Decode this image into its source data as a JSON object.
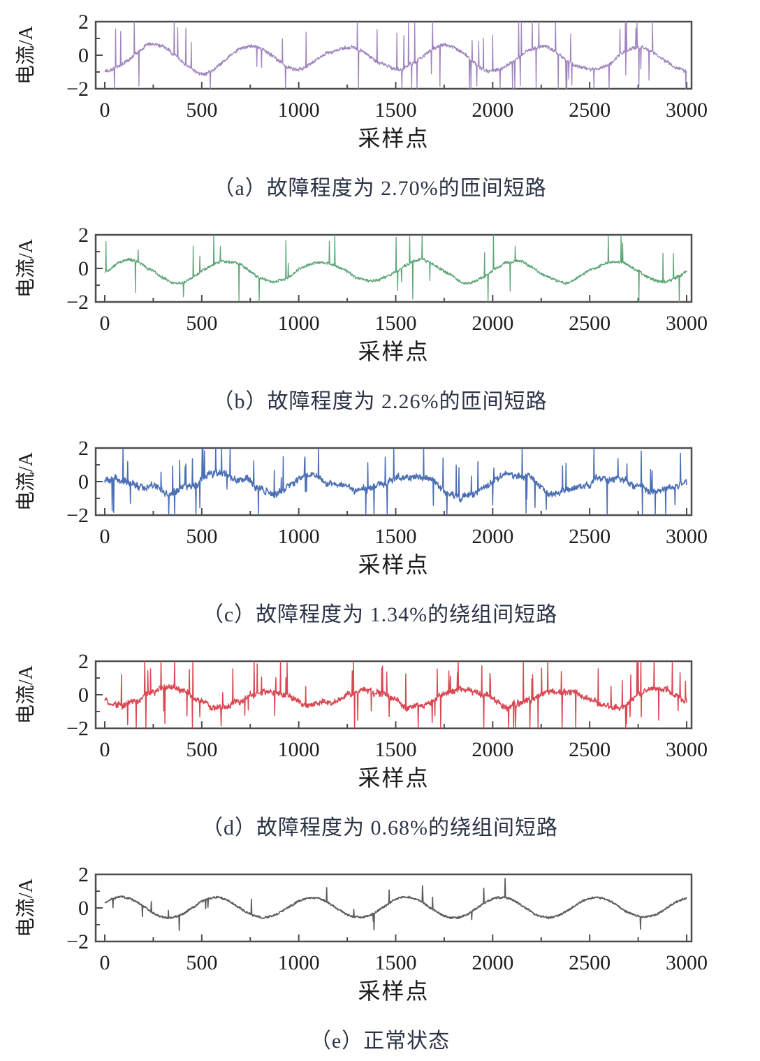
{
  "page": {
    "background": "#ffffff",
    "figure_kind": "five stacked current waveform plots"
  },
  "chart_data": [
    {
      "id": "a",
      "type": "line",
      "caption": "（a）故障程度为 2.70%的匝间短路",
      "xlabel": "采样点",
      "ylabel": "电流/A",
      "xlim": [
        0,
        3000
      ],
      "ylim": [
        -2,
        2
      ],
      "xticks": [
        0,
        500,
        1000,
        1500,
        2000,
        2500,
        3000
      ],
      "xtick_labels": [
        "0",
        "500",
        "1000",
        "1500",
        "2000",
        "2500",
        "3000"
      ],
      "yticks": [
        2,
        0,
        -2
      ],
      "ytick_labels": [
        "2",
        "0",
        "−2"
      ],
      "minor_xticks": [
        250,
        750,
        1250,
        1750,
        2250,
        2750
      ],
      "minor_yticks": [
        1,
        -1
      ],
      "axis_color": "#4d4d4d",
      "grid": false,
      "legend": "none",
      "pattern": "sine wave ~0.7 A amplitude, period ~500 samples, heavy impulsive spikes clipped at ±2",
      "line_color": "#9879b9",
      "line_width": 1.3,
      "waveform": {
        "n_points": 3000,
        "amplitude": 0.72,
        "am": 0.15,
        "period": 500,
        "phase_deg": -90,
        "offset": -0.18,
        "noise": 0.1,
        "walk": 0.05,
        "spike_prob": 0.045,
        "spike_min": 1.0,
        "spike_max": 2.6,
        "spike_down_bias": 0.55,
        "seed": 17
      }
    },
    {
      "id": "b",
      "type": "line",
      "caption": "（b）故障程度为 2.26%的匝间短路",
      "xlabel": "采样点",
      "ylabel": "电流/A",
      "xlim": [
        0,
        3000
      ],
      "ylim": [
        -2,
        2
      ],
      "xticks": [
        0,
        500,
        1000,
        1500,
        2000,
        2500,
        3000
      ],
      "xtick_labels": [
        "0",
        "500",
        "1000",
        "1500",
        "2000",
        "2500",
        "3000"
      ],
      "yticks": [
        2,
        0,
        -2
      ],
      "ytick_labels": [
        "2",
        "0",
        "−2"
      ],
      "minor_xticks": [
        250,
        750,
        1250,
        1750,
        2250,
        2750
      ],
      "minor_yticks": [
        1,
        -1
      ],
      "axis_color": "#4d4d4d",
      "grid": false,
      "legend": "none",
      "pattern": "sine wave ~0.6 A amplitude, period ~500 samples, moderate impulsive spikes to ±2",
      "line_color": "#4f9e6a",
      "line_width": 1.3,
      "waveform": {
        "n_points": 3000,
        "amplitude": 0.62,
        "am": 0.08,
        "period": 500,
        "phase_deg": 0,
        "offset": -0.2,
        "noise": 0.08,
        "walk": 0.04,
        "spike_prob": 0.02,
        "spike_min": 0.8,
        "spike_max": 2.4,
        "spike_down_bias": 0.5,
        "seed": 29
      }
    },
    {
      "id": "c",
      "type": "line",
      "caption": "（c）故障程度为 1.34%的绕组间短路",
      "xlabel": "采样点",
      "ylabel": "电流/A",
      "xlim": [
        0,
        3000
      ],
      "ylim": [
        -2,
        2
      ],
      "xticks": [
        0,
        500,
        1000,
        1500,
        2000,
        2500,
        3000
      ],
      "xtick_labels": [
        "0",
        "500",
        "1000",
        "1500",
        "2000",
        "2500",
        "3000"
      ],
      "yticks": [
        2,
        0,
        -2
      ],
      "ytick_labels": [
        "2",
        "0",
        "−2"
      ],
      "minor_xticks": [
        250,
        750,
        1250,
        1750,
        2250,
        2750
      ],
      "minor_yticks": [
        1,
        -1
      ],
      "axis_color": "#4d4d4d",
      "grid": false,
      "legend": "none",
      "pattern": "weak sine buried in strong jagged noise, frequent spikes clipped at ±2",
      "line_color": "#3c63ae",
      "line_width": 1.5,
      "waveform": {
        "n_points": 3000,
        "amplitude": 0.42,
        "am": 0.1,
        "period": 500,
        "phase_deg": 30,
        "offset": -0.15,
        "noise": 0.16,
        "walk": 0.14,
        "spike_prob": 0.05,
        "spike_min": 0.9,
        "spike_max": 2.5,
        "spike_down_bias": 0.5,
        "seed": 53
      }
    },
    {
      "id": "d",
      "type": "line",
      "caption": "（d）故障程度为 0.68%的绕组间短路",
      "xlabel": "采样点",
      "ylabel": "电流/A",
      "xlim": [
        0,
        3000
      ],
      "ylim": [
        -2,
        2
      ],
      "xticks": [
        0,
        500,
        1000,
        1500,
        2000,
        2500,
        3000
      ],
      "xtick_labels": [
        "0",
        "500",
        "1000",
        "1500",
        "2000",
        "2500",
        "3000"
      ],
      "yticks": [
        2,
        0,
        -2
      ],
      "ytick_labels": [
        "2",
        "0",
        "−2"
      ],
      "minor_xticks": [
        250,
        750,
        1250,
        1750,
        2250,
        2750
      ],
      "minor_yticks": [
        1,
        -1
      ],
      "axis_color": "#4d4d4d",
      "grid": false,
      "legend": "none",
      "pattern": "weak sine with strong jagged noise and many tall spikes clipped at ±2",
      "line_color": "#d63a45",
      "line_width": 1.5,
      "waveform": {
        "n_points": 3000,
        "amplitude": 0.45,
        "am": 0.1,
        "period": 500,
        "phase_deg": -162,
        "offset": -0.15,
        "noise": 0.15,
        "walk": 0.12,
        "spike_prob": 0.055,
        "spike_min": 0.9,
        "spike_max": 2.5,
        "spike_down_bias": 0.45,
        "seed": 71
      }
    },
    {
      "id": "e",
      "type": "line",
      "caption": "（e）正常状态",
      "xlabel": "采样点",
      "ylabel": "电流/A",
      "xlim": [
        0,
        3000
      ],
      "ylim": [
        -2,
        2
      ],
      "xticks": [
        0,
        500,
        1000,
        1500,
        2000,
        2500,
        3000
      ],
      "xtick_labels": [
        "0",
        "500",
        "1000",
        "1500",
        "2000",
        "2500",
        "3000"
      ],
      "yticks": [
        2,
        0,
        -2
      ],
      "ytick_labels": [
        "2",
        "0",
        "−2"
      ],
      "minor_xticks": [
        250,
        750,
        1250,
        1750,
        2250,
        2750
      ],
      "minor_yticks": [
        1,
        -1
      ],
      "axis_color": "#4d4d4d",
      "grid": false,
      "legend": "none",
      "pattern": "clean sine ~0.6 A amplitude, period ~490 samples, rare small spikes",
      "line_color": "#4f4f4f",
      "line_width": 1.7,
      "waveform": {
        "n_points": 3000,
        "amplitude": 0.6,
        "am": 0.05,
        "period": 490,
        "phase_deg": 28,
        "offset": 0.03,
        "noise": 0.055,
        "walk": 0.02,
        "spike_prob": 0.012,
        "spike_min": 0.4,
        "spike_max": 1.1,
        "spike_down_bias": 0.5,
        "seed": 88
      }
    }
  ]
}
